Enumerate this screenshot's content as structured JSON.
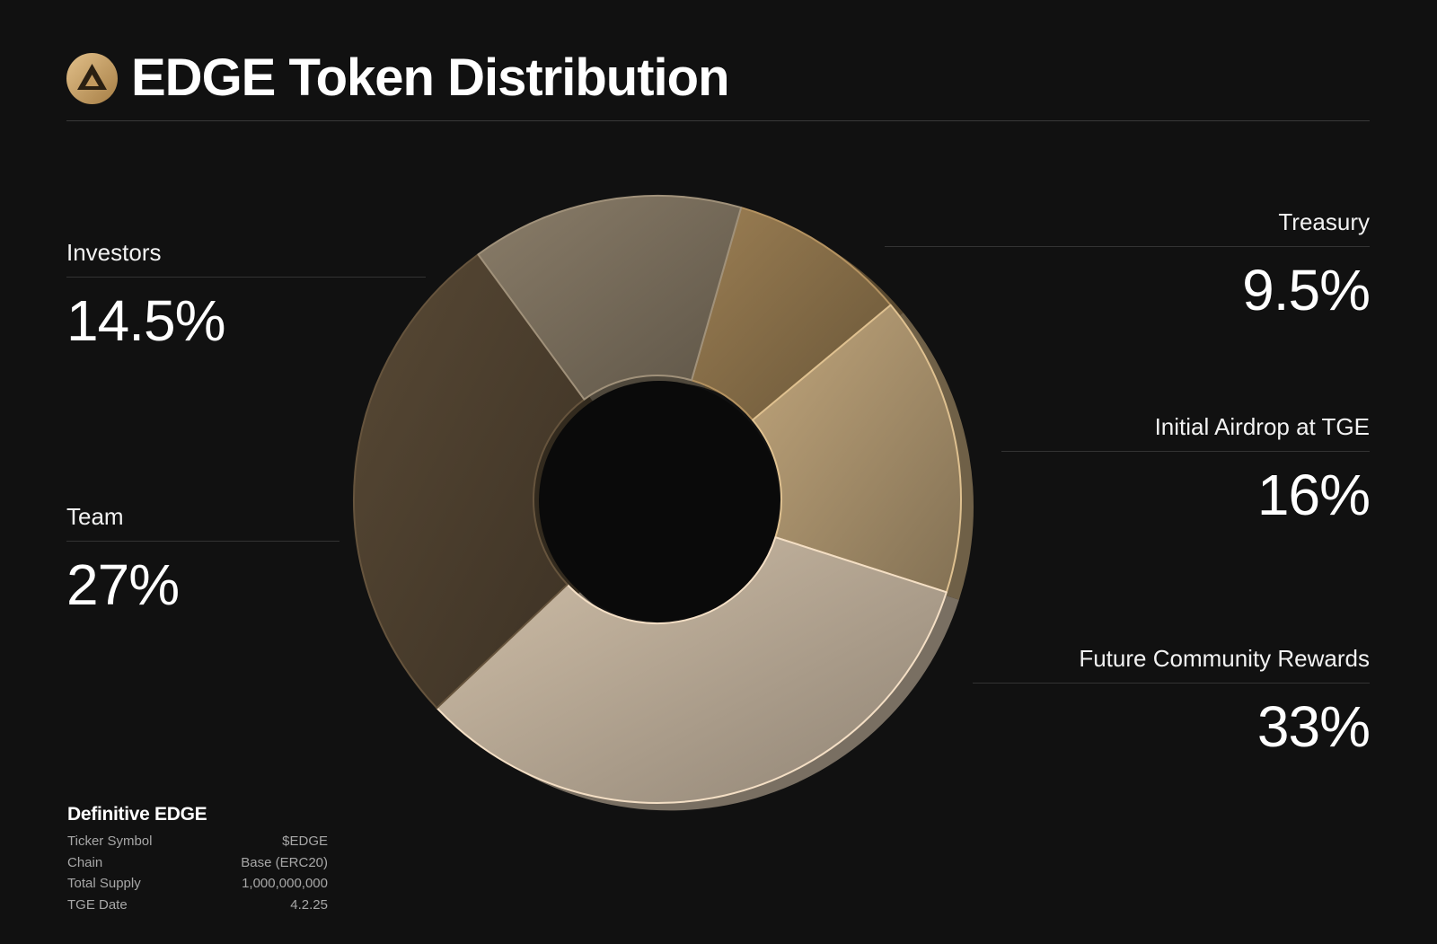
{
  "header": {
    "title": "EDGE Token Distribution",
    "logo_icon": "edge-triangle-icon",
    "logo_color": "#c9a46c"
  },
  "chart_data": {
    "type": "pie",
    "style": "donut",
    "title": "EDGE Token Distribution",
    "categories": [
      "Treasury",
      "Initial Airdrop at TGE",
      "Future Community Rewards",
      "Team",
      "Investors"
    ],
    "values": [
      9.5,
      16,
      33,
      27,
      14.5
    ],
    "value_labels": [
      "9.5%",
      "16%",
      "33%",
      "27%",
      "14.5%"
    ],
    "colors": [
      "#7c6542",
      "#9a8563",
      "#a89a88",
      "#463a2a",
      "#6e6454"
    ],
    "legend": "labels beside chart"
  },
  "labels": {
    "investors": {
      "name": "Investors",
      "value": "14.5%"
    },
    "team": {
      "name": "Team",
      "value": "27%"
    },
    "treasury": {
      "name": "Treasury",
      "value": "9.5%"
    },
    "airdrop": {
      "name": "Initial Airdrop at TGE",
      "value": "16%"
    },
    "community": {
      "name": "Future Community Rewards",
      "value": "33%"
    }
  },
  "info": {
    "heading": "Definitive EDGE",
    "rows": [
      {
        "label": "Ticker Symbol",
        "value": "$EDGE"
      },
      {
        "label": "Chain",
        "value": "Base (ERC20)"
      },
      {
        "label": "Total Supply",
        "value": "1,000,000,000"
      },
      {
        "label": "TGE Date",
        "value": "4.2.25"
      }
    ]
  }
}
